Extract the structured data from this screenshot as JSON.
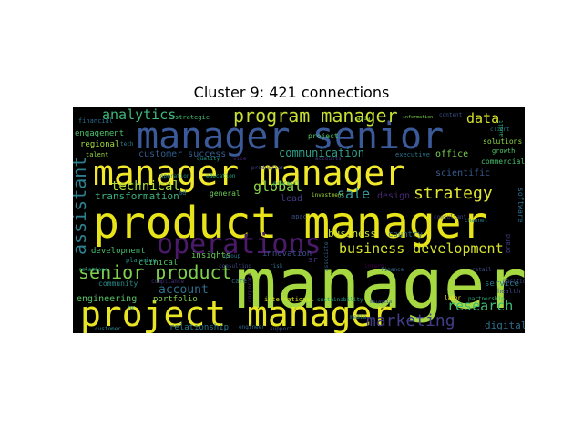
{
  "chart_data": {
    "type": "wordcloud",
    "title": "Cluster 9: 421 connections",
    "background": "#000000",
    "words": [
      {
        "text": "manager",
        "color": "#a6d841"
      },
      {
        "text": "product manager",
        "color": "#e8e41a"
      },
      {
        "text": "manager manager",
        "color": "#f0e82a"
      },
      {
        "text": "manager senior",
        "color": "#3b5a9a"
      },
      {
        "text": "project manager",
        "color": "#e8e624"
      },
      {
        "text": "operations",
        "color": "#4b1a6a"
      },
      {
        "text": "program manager",
        "color": "#c6df32"
      },
      {
        "text": "business development",
        "color": "#d4e22c"
      },
      {
        "text": "senior product",
        "color": "#7ed04e"
      },
      {
        "text": "strategy",
        "color": "#dfe534"
      },
      {
        "text": "marketing",
        "color": "#413e86"
      },
      {
        "text": "assistant",
        "color": "#2e7f8e"
      },
      {
        "text": "analytics",
        "color": "#3fb97a"
      },
      {
        "text": "research",
        "color": "#3fbc74"
      },
      {
        "text": "data",
        "color": "#d6e22a"
      },
      {
        "text": "technical",
        "color": "#a9db3c"
      },
      {
        "text": "global",
        "color": "#8ad347"
      },
      {
        "text": "sale",
        "color": "#35989a"
      },
      {
        "text": "account",
        "color": "#2f6f8e"
      },
      {
        "text": "communication",
        "color": "#2fa08b"
      },
      {
        "text": "transformation",
        "color": "#3cb180"
      },
      {
        "text": "customer success",
        "color": "#335c8c"
      },
      {
        "text": "engagement",
        "color": "#4ec36c"
      },
      {
        "text": "development",
        "color": "#46bd6f"
      },
      {
        "text": "scientific",
        "color": "#3a5a8e"
      },
      {
        "text": "business",
        "color": "#c4dd34"
      },
      {
        "text": "digital",
        "color": "#2f6e8e"
      },
      {
        "text": "engineering",
        "color": "#57c567"
      },
      {
        "text": "clinical",
        "color": "#50c46b"
      },
      {
        "text": "insights",
        "color": "#69ca5d"
      },
      {
        "text": "portfolio",
        "color": "#7fcf50"
      },
      {
        "text": "relationship",
        "color": "#2c788e"
      },
      {
        "text": "community",
        "color": "#2a8c8a"
      },
      {
        "text": "innovation",
        "color": "#3c4f8a"
      },
      {
        "text": "design",
        "color": "#472878"
      },
      {
        "text": "lead",
        "color": "#423b84"
      },
      {
        "text": "country",
        "color": "#2f6d8e"
      },
      {
        "text": "service",
        "color": "#2b7b8e"
      },
      {
        "text": "office",
        "color": "#7ad151"
      },
      {
        "text": "commercial",
        "color": "#4ac16d"
      },
      {
        "text": "solutions",
        "color": "#8fd744"
      },
      {
        "text": "growth",
        "color": "#56c667"
      },
      {
        "text": "software",
        "color": "#2d708e"
      },
      {
        "text": "regional",
        "color": "#a0da39"
      },
      {
        "text": "strategic",
        "color": "#40bd72"
      },
      {
        "text": "financial",
        "color": "#2e6e8e"
      },
      {
        "text": "executive",
        "color": "#2a768e"
      },
      {
        "text": "project",
        "color": "#4fc46a"
      },
      {
        "text": "general",
        "color": "#6ccd5a"
      },
      {
        "text": "apac",
        "color": "#3b528b"
      },
      {
        "text": "planning",
        "color": "#1f968b"
      },
      {
        "text": "talent",
        "color": "#95d840"
      },
      {
        "text": "health",
        "color": "#3e4a89"
      },
      {
        "text": "content",
        "color": "#3a538b"
      },
      {
        "text": "customer",
        "color": "#24868e"
      },
      {
        "text": "engineer",
        "color": "#31688e"
      },
      {
        "text": "support",
        "color": "#3b518b"
      },
      {
        "text": "international",
        "color": "#d2e21b"
      },
      {
        "text": "sustainability",
        "color": "#1fa188"
      },
      {
        "text": "investment",
        "color": "#a2da37"
      },
      {
        "text": "brand",
        "color": "#433e85"
      },
      {
        "text": "care",
        "color": "#2c738e"
      },
      {
        "text": "group",
        "color": "#2a778e"
      },
      {
        "text": "pacific",
        "color": "#3b518b"
      },
      {
        "text": "partnership",
        "color": "#29af7f"
      },
      {
        "text": "labor",
        "color": "#fde725"
      },
      {
        "text": "compliance",
        "color": "#46327e"
      },
      {
        "text": "production",
        "color": "#3e4989"
      },
      {
        "text": "information",
        "color": "#7ad151"
      },
      {
        "text": "corporate",
        "color": "#482475"
      },
      {
        "text": "associate",
        "color": "#34618d"
      },
      {
        "text": "client",
        "color": "#287c8e"
      },
      {
        "text": "audit",
        "color": "#31b57b"
      },
      {
        "text": "malaysia",
        "color": "#38588c"
      },
      {
        "text": "sr",
        "color": "#46307e"
      },
      {
        "text": "risk",
        "color": "#2e6f8e"
      },
      {
        "text": "asia",
        "color": "#9dd93b"
      },
      {
        "text": "tech",
        "color": "#277f8e"
      },
      {
        "text": "education",
        "color": "#22a785"
      },
      {
        "text": "consulting",
        "color": "#3e4a89"
      },
      {
        "text": "intern",
        "color": "#440154"
      },
      {
        "text": "hr",
        "color": "#20928c"
      },
      {
        "text": "media",
        "color": "#2a788e"
      },
      {
        "text": "consultant",
        "color": "#3f4788"
      },
      {
        "text": "quality",
        "color": "#1e9c89"
      },
      {
        "text": "process",
        "color": "#35b779"
      },
      {
        "text": "channel",
        "color": "#26828e"
      },
      {
        "text": "vice",
        "color": "#482878"
      },
      {
        "text": "finance",
        "color": "#31688e"
      },
      {
        "text": "accounts",
        "color": "#443a83"
      },
      {
        "text": "operation",
        "color": "#25858e"
      },
      {
        "text": "relations",
        "color": "#1f9e89"
      },
      {
        "text": "retail",
        "color": "#3e4c8a"
      },
      {
        "text": "ad",
        "color": "#2c728e"
      }
    ]
  }
}
